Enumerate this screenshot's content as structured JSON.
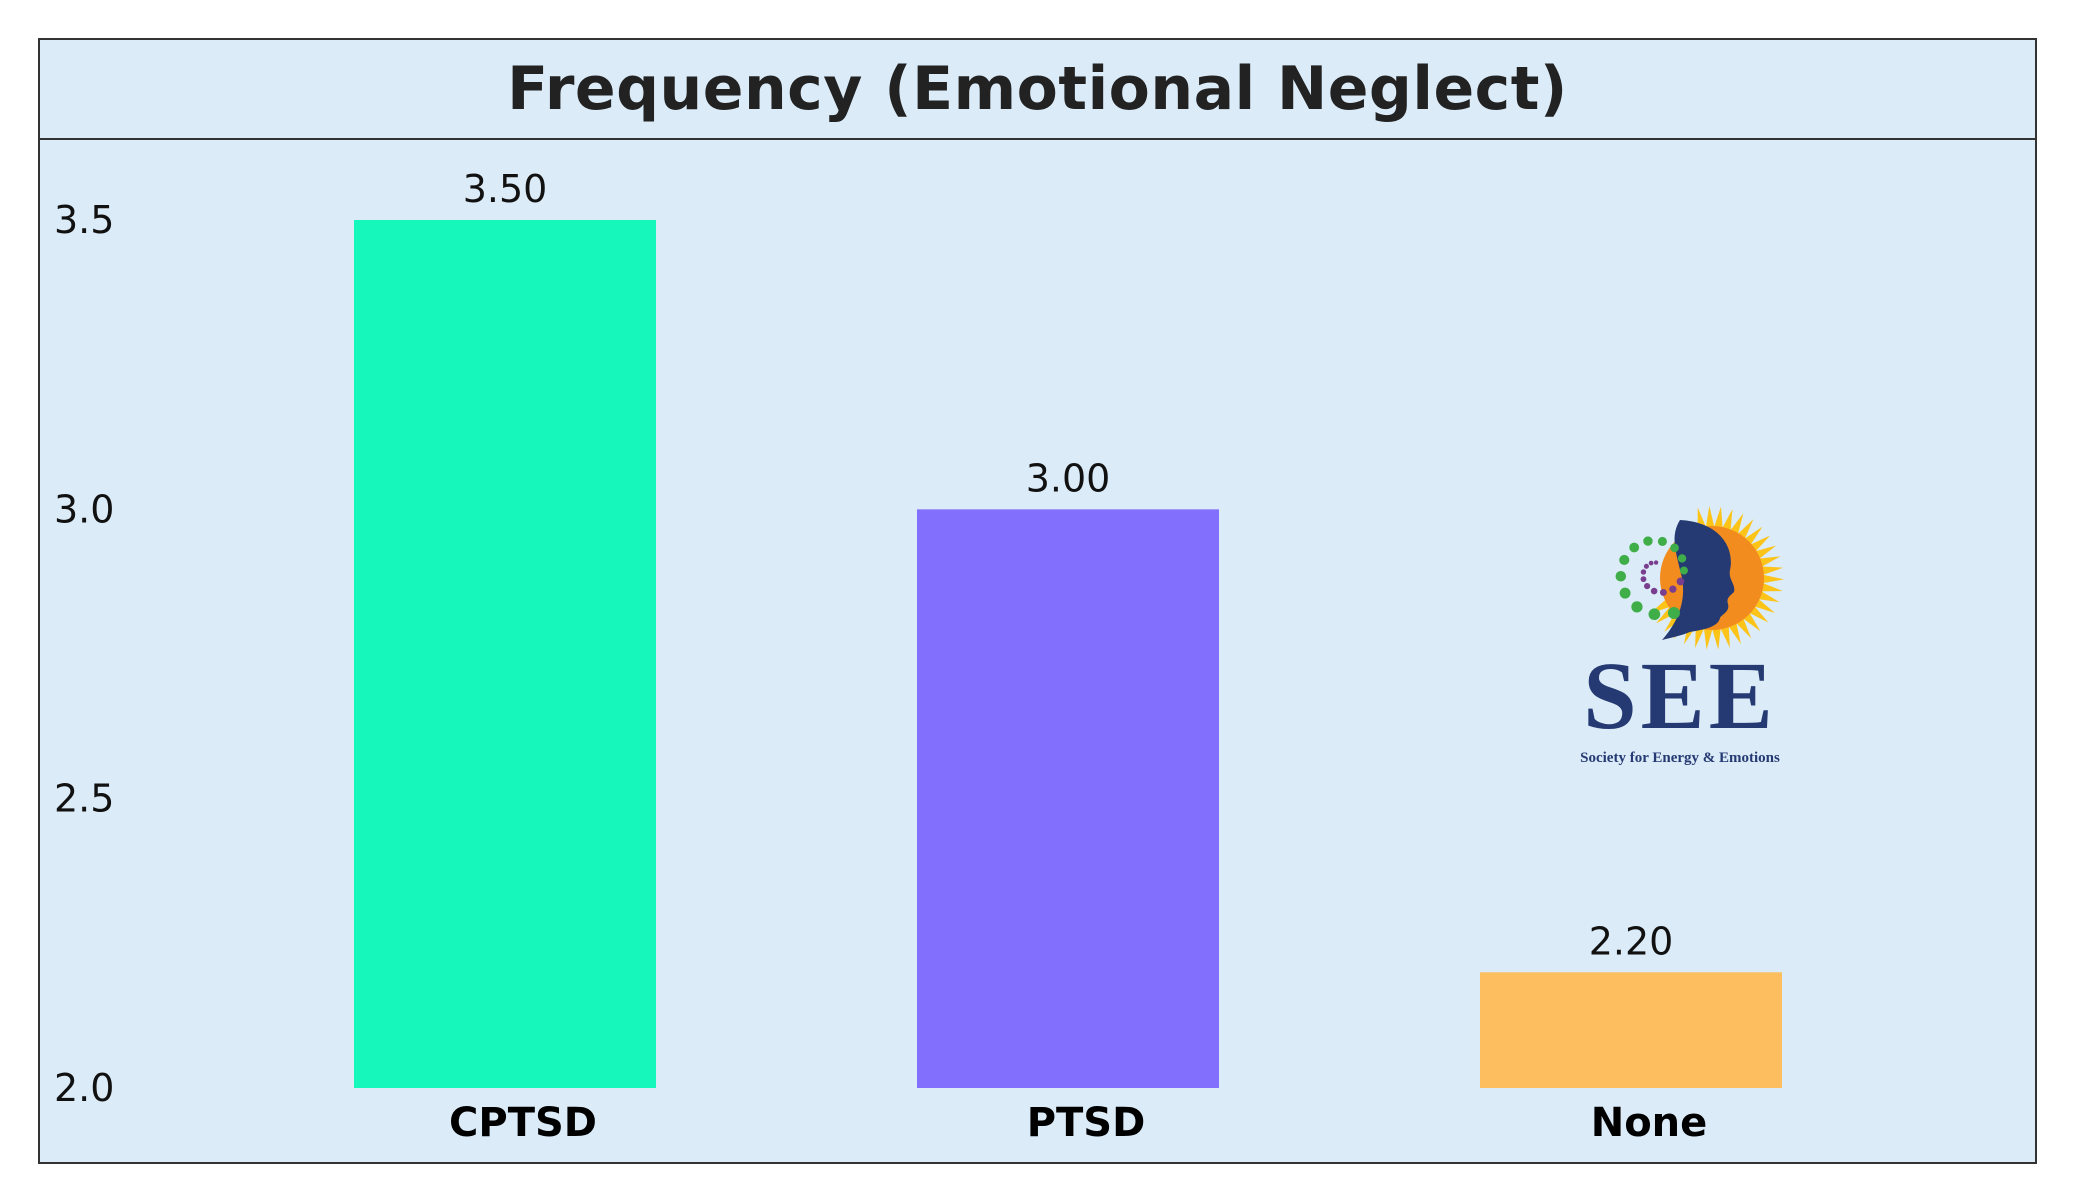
{
  "chart_data": {
    "type": "bar",
    "title": "Frequency (Emotional Neglect)",
    "categories": [
      "CPTSD",
      "PTSD",
      "None"
    ],
    "values": [
      3.5,
      3.0,
      2.2
    ],
    "value_labels": [
      "3.50",
      "3.00",
      "2.20"
    ],
    "colors": [
      "#16f7bb",
      "#826ffe",
      "#fcbe5f"
    ],
    "ylim": [
      2.0,
      3.6
    ],
    "yticks": [
      "2.0",
      "2.5",
      "3.0",
      "3.5"
    ],
    "ytick_values": [
      2.0,
      2.5,
      3.0,
      3.5
    ],
    "xlabel": "",
    "ylabel": "",
    "grid": false,
    "background": "#dbebf8"
  },
  "logo": {
    "name": "see-logo",
    "wordmark": "SEE",
    "tagline": "Society for Energy & Emotions",
    "colors": {
      "navy": "#253a73",
      "orange": "#f28c1e",
      "yellow": "#fcc419",
      "green": "#3fae49",
      "purple": "#7a3e8f"
    }
  }
}
